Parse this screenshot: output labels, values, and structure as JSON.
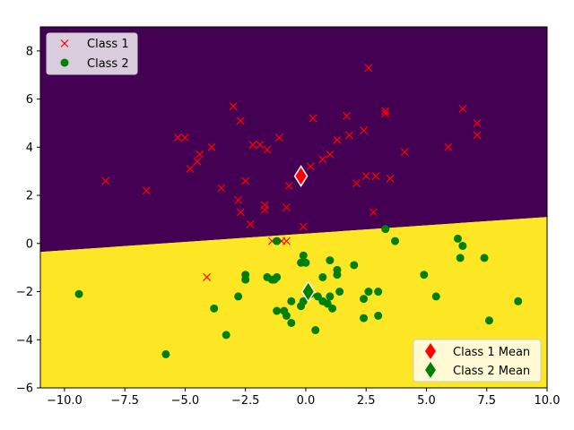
{
  "chart_data": {
    "type": "scatter",
    "title": "",
    "xlabel": "",
    "ylabel": "",
    "xlim": [
      -11,
      10
    ],
    "ylim": [
      -6,
      9
    ],
    "xticks": [
      -10.0,
      -7.5,
      -5.0,
      -2.5,
      0.0,
      2.5,
      5.0,
      7.5,
      10.0
    ],
    "xtick_labels": [
      "−10.0",
      "−7.5",
      "−5.0",
      "−2.5",
      "0.0",
      "2.5",
      "5.0",
      "7.5",
      "10.0"
    ],
    "yticks": [
      -6,
      -4,
      -2,
      0,
      2,
      4,
      6,
      8
    ],
    "ytick_labels": [
      "−6",
      "−4",
      "−2",
      "0",
      "2",
      "4",
      "6",
      "8"
    ],
    "grid": false,
    "decision_boundary": {
      "line": [
        [
          -11,
          -0.35
        ],
        [
          10,
          1.1
        ]
      ],
      "region_above_color": "#440154",
      "region_below_color": "#fde725"
    },
    "series": [
      {
        "name": "Class 1",
        "marker": "x",
        "color": "#ff0000",
        "points": [
          [
            2.6,
            7.3
          ],
          [
            -3.0,
            5.7
          ],
          [
            -2.7,
            5.1
          ],
          [
            0.3,
            5.2
          ],
          [
            1.7,
            5.3
          ],
          [
            3.3,
            5.4
          ],
          [
            3.3,
            5.5
          ],
          [
            -5.3,
            4.4
          ],
          [
            -5.0,
            4.4
          ],
          [
            -1.1,
            4.4
          ],
          [
            1.3,
            4.3
          ],
          [
            1.8,
            4.5
          ],
          [
            2.4,
            4.7
          ],
          [
            6.5,
            5.6
          ],
          [
            7.1,
            5.0
          ],
          [
            7.1,
            4.5
          ],
          [
            5.9,
            4.0
          ],
          [
            -3.9,
            4.0
          ],
          [
            -2.2,
            4.1
          ],
          [
            -1.9,
            4.1
          ],
          [
            -1.6,
            3.9
          ],
          [
            -4.4,
            3.7
          ],
          [
            -4.5,
            3.4
          ],
          [
            -4.8,
            3.1
          ],
          [
            0.7,
            3.5
          ],
          [
            1.0,
            3.7
          ],
          [
            0.2,
            3.2
          ],
          [
            4.1,
            3.8
          ],
          [
            -8.3,
            2.6
          ],
          [
            -6.6,
            2.2
          ],
          [
            -3.5,
            2.3
          ],
          [
            -2.5,
            2.6
          ],
          [
            -0.7,
            2.4
          ],
          [
            2.1,
            2.5
          ],
          [
            2.5,
            2.8
          ],
          [
            2.9,
            2.8
          ],
          [
            3.5,
            2.7
          ],
          [
            -2.8,
            1.8
          ],
          [
            -2.7,
            1.3
          ],
          [
            -1.7,
            1.6
          ],
          [
            -1.7,
            1.4
          ],
          [
            -0.8,
            1.5
          ],
          [
            2.8,
            1.3
          ],
          [
            -2.3,
            0.8
          ],
          [
            -0.1,
            0.7
          ],
          [
            -1.4,
            0.1
          ],
          [
            -1.0,
            0.1
          ],
          [
            -0.8,
            0.1
          ],
          [
            -4.1,
            -1.4
          ]
        ]
      },
      {
        "name": "Class 2",
        "marker": "o",
        "color": "#008000",
        "points": [
          [
            -9.4,
            -2.1
          ],
          [
            -5.8,
            -4.6
          ],
          [
            -3.8,
            -2.7
          ],
          [
            -3.3,
            -3.8
          ],
          [
            -2.8,
            -2.2
          ],
          [
            -2.5,
            -1.3
          ],
          [
            -2.5,
            -1.5
          ],
          [
            -1.6,
            -1.4
          ],
          [
            -1.4,
            -1.5
          ],
          [
            -1.3,
            -1.5
          ],
          [
            -1.2,
            -1.4
          ],
          [
            -1.2,
            -2.8
          ],
          [
            -0.9,
            -2.8
          ],
          [
            -0.8,
            -3.0
          ],
          [
            -0.6,
            -2.4
          ],
          [
            -0.6,
            -3.3
          ],
          [
            -0.2,
            -2.6
          ],
          [
            -0.1,
            -2.4
          ],
          [
            -0.2,
            -0.8
          ],
          [
            -0.1,
            -0.5
          ],
          [
            0.0,
            -0.8
          ],
          [
            0.2,
            -2.1
          ],
          [
            0.4,
            -3.6
          ],
          [
            0.5,
            -2.2
          ],
          [
            0.7,
            -1.4
          ],
          [
            0.7,
            -2.4
          ],
          [
            0.9,
            -2.5
          ],
          [
            1.0,
            -2.2
          ],
          [
            1.0,
            -0.7
          ],
          [
            1.1,
            -2.7
          ],
          [
            1.3,
            -1.1
          ],
          [
            1.3,
            -1.3
          ],
          [
            1.4,
            -2.0
          ],
          [
            2.0,
            -0.9
          ],
          [
            2.4,
            -3.1
          ],
          [
            2.4,
            -2.3
          ],
          [
            2.6,
            -2.0
          ],
          [
            3.0,
            -2.0
          ],
          [
            3.0,
            -3.0
          ],
          [
            3.3,
            0.6
          ],
          [
            3.7,
            0.1
          ],
          [
            4.9,
            -1.3
          ],
          [
            5.4,
            -2.2
          ],
          [
            6.3,
            0.2
          ],
          [
            6.5,
            -0.1
          ],
          [
            6.4,
            -0.6
          ],
          [
            7.4,
            -0.6
          ],
          [
            7.6,
            -3.2
          ],
          [
            8.8,
            -2.4
          ],
          [
            -1.2,
            0.1
          ]
        ]
      }
    ],
    "means": [
      {
        "name": "Class 1 Mean",
        "color": "#ff0000",
        "x": -0.2,
        "y": 2.8
      },
      {
        "name": "Class 2 Mean",
        "color": "#008000",
        "x": 0.1,
        "y": -2.0
      }
    ],
    "legends": [
      {
        "placement": "top-left",
        "entries": [
          "Class 1",
          "Class 2"
        ]
      },
      {
        "placement": "bottom-right",
        "entries": [
          "Class 1 Mean",
          "Class 2 Mean"
        ]
      }
    ]
  }
}
